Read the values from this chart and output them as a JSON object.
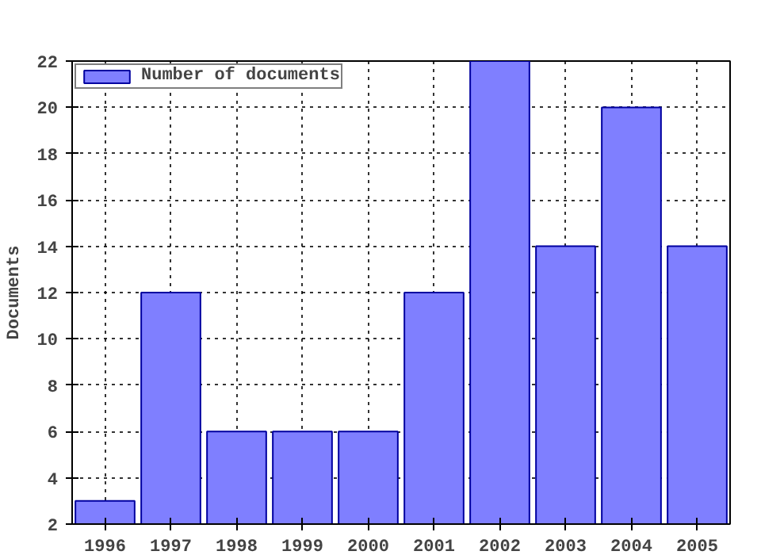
{
  "chart_data": {
    "type": "bar",
    "ylabel": "Documents",
    "x": [
      1996,
      1997,
      1998,
      1999,
      2000,
      2001,
      2002,
      2003,
      2004,
      2005
    ],
    "series": [
      {
        "name": "Number of documents",
        "color": "#7f7fff",
        "values": [
          3,
          12,
          6,
          6,
          6,
          12,
          22,
          14,
          20,
          14
        ]
      }
    ],
    "xlim": [
      1995.5,
      2005.5
    ],
    "xticks": [
      1996,
      1997,
      1998,
      1999,
      2000,
      2001,
      2002,
      2003,
      2004,
      2005
    ],
    "ylim": [
      2,
      22
    ],
    "yticks": [
      2,
      4,
      6,
      8,
      10,
      12,
      14,
      16,
      18,
      20,
      22
    ],
    "grid": true,
    "legend": "top left"
  }
}
